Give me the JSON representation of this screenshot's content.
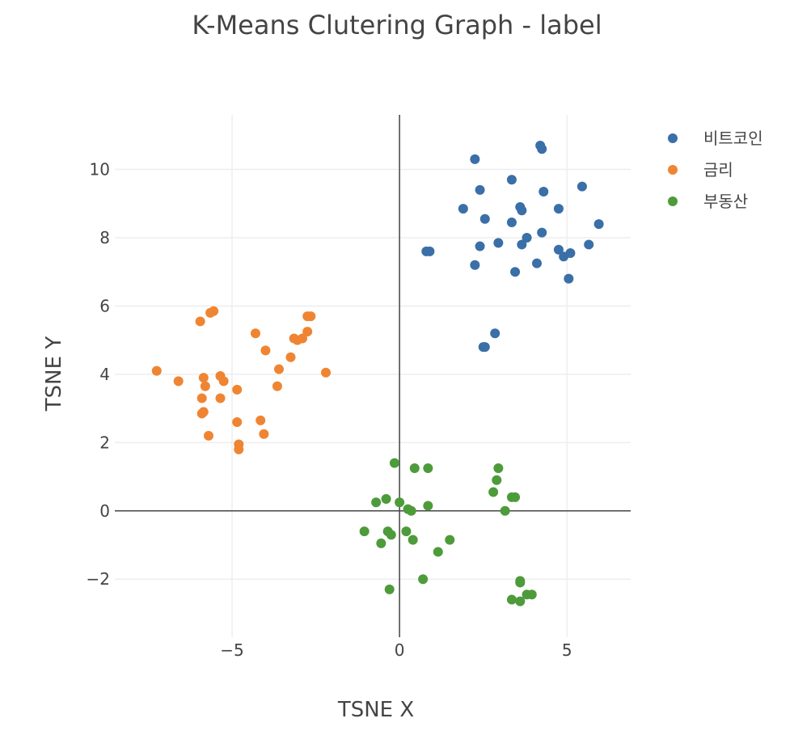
{
  "chart_data": {
    "type": "scatter",
    "title": "K-Means Clutering Graph - label",
    "xlabel": "TSNE X",
    "ylabel": "TSNE Y",
    "xlim": [
      -8.5,
      6.9
    ],
    "ylim": [
      -3.7,
      11.6
    ],
    "xticks": [
      -5,
      0,
      5
    ],
    "xtick_labels": [
      "−5",
      "0",
      "5"
    ],
    "yticks": [
      -2,
      0,
      2,
      4,
      6,
      8,
      10
    ],
    "ytick_labels": [
      "−2",
      "0",
      "2",
      "4",
      "6",
      "8",
      "10"
    ],
    "grid": true,
    "zerolines": true,
    "legend_position": "top-right",
    "series": [
      {
        "name": "비트코인",
        "color": "#3a6fa8",
        "points": [
          [
            2.25,
            10.3
          ],
          [
            4.2,
            10.7
          ],
          [
            4.25,
            10.6
          ],
          [
            3.35,
            9.7
          ],
          [
            2.4,
            9.4
          ],
          [
            4.3,
            9.35
          ],
          [
            5.45,
            9.5
          ],
          [
            1.9,
            8.85
          ],
          [
            3.6,
            8.9
          ],
          [
            3.65,
            8.8
          ],
          [
            4.75,
            8.85
          ],
          [
            2.55,
            8.55
          ],
          [
            3.35,
            8.45
          ],
          [
            5.95,
            8.4
          ],
          [
            4.25,
            8.15
          ],
          [
            3.8,
            8.0
          ],
          [
            2.95,
            7.85
          ],
          [
            3.65,
            7.8
          ],
          [
            5.65,
            7.8
          ],
          [
            2.4,
            7.75
          ],
          [
            0.8,
            7.6
          ],
          [
            0.9,
            7.6
          ],
          [
            4.75,
            7.65
          ],
          [
            4.9,
            7.45
          ],
          [
            5.1,
            7.55
          ],
          [
            4.1,
            7.25
          ],
          [
            2.25,
            7.2
          ],
          [
            3.45,
            7.0
          ],
          [
            5.05,
            6.8
          ],
          [
            2.85,
            5.2
          ],
          [
            2.55,
            4.8
          ],
          [
            2.5,
            4.8
          ]
        ]
      },
      {
        "name": "금리",
        "color": "#ef8532",
        "points": [
          [
            -5.55,
            5.85
          ],
          [
            -5.65,
            5.8
          ],
          [
            -5.95,
            5.55
          ],
          [
            -2.75,
            5.7
          ],
          [
            -2.65,
            5.7
          ],
          [
            -4.3,
            5.2
          ],
          [
            -2.75,
            5.25
          ],
          [
            -3.15,
            5.05
          ],
          [
            -3.05,
            5.0
          ],
          [
            -2.9,
            5.05
          ],
          [
            -4.0,
            4.7
          ],
          [
            -3.25,
            4.5
          ],
          [
            -3.6,
            4.15
          ],
          [
            -2.2,
            4.05
          ],
          [
            -7.25,
            4.1
          ],
          [
            -6.6,
            3.8
          ],
          [
            -5.85,
            3.9
          ],
          [
            -5.35,
            3.95
          ],
          [
            -5.25,
            3.8
          ],
          [
            -5.8,
            3.65
          ],
          [
            -3.65,
            3.65
          ],
          [
            -4.85,
            3.55
          ],
          [
            -5.9,
            3.3
          ],
          [
            -5.35,
            3.3
          ],
          [
            -5.85,
            2.9
          ],
          [
            -5.9,
            2.85
          ],
          [
            -4.85,
            2.6
          ],
          [
            -4.15,
            2.65
          ],
          [
            -5.7,
            2.2
          ],
          [
            -4.05,
            2.25
          ],
          [
            -4.8,
            1.95
          ],
          [
            -4.8,
            1.8
          ]
        ]
      },
      {
        "name": "부동산",
        "color": "#4d9b3a",
        "points": [
          [
            -0.15,
            1.4
          ],
          [
            0.45,
            1.25
          ],
          [
            0.85,
            1.25
          ],
          [
            2.95,
            1.25
          ],
          [
            2.9,
            0.9
          ],
          [
            2.8,
            0.55
          ],
          [
            3.35,
            0.4
          ],
          [
            3.45,
            0.4
          ],
          [
            -0.4,
            0.35
          ],
          [
            -0.7,
            0.25
          ],
          [
            0.0,
            0.25
          ],
          [
            0.85,
            0.15
          ],
          [
            0.25,
            0.05
          ],
          [
            0.35,
            0.0
          ],
          [
            3.15,
            0.0
          ],
          [
            -1.05,
            -0.6
          ],
          [
            -0.35,
            -0.6
          ],
          [
            -0.25,
            -0.7
          ],
          [
            0.2,
            -0.6
          ],
          [
            0.4,
            -0.85
          ],
          [
            1.5,
            -0.85
          ],
          [
            -0.55,
            -0.95
          ],
          [
            1.15,
            -1.2
          ],
          [
            0.7,
            -2.0
          ],
          [
            -0.3,
            -2.3
          ],
          [
            3.6,
            -2.05
          ],
          [
            3.6,
            -2.1
          ],
          [
            3.8,
            -2.45
          ],
          [
            3.95,
            -2.45
          ],
          [
            3.35,
            -2.6
          ],
          [
            3.6,
            -2.65
          ]
        ]
      }
    ]
  }
}
